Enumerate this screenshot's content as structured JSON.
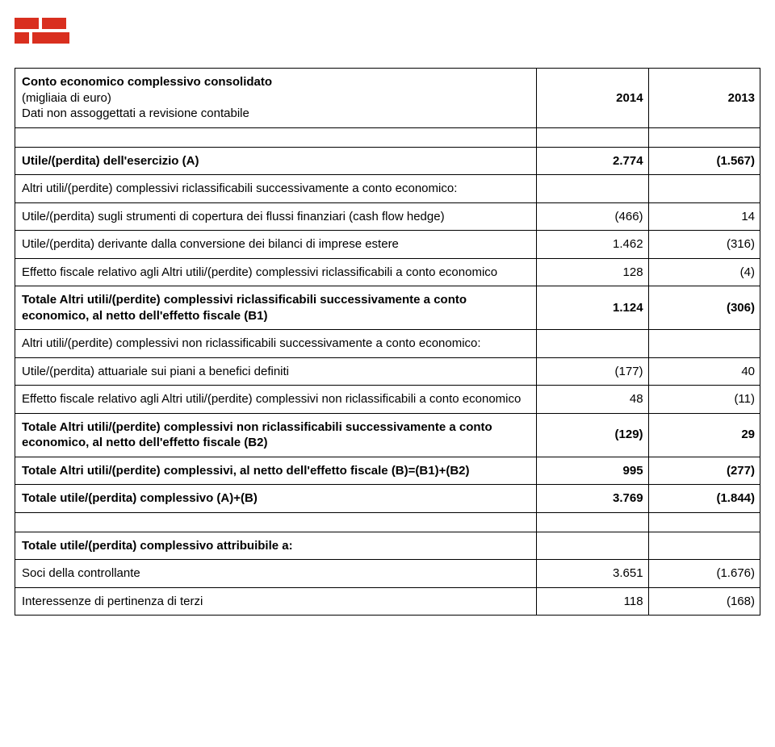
{
  "logo": {
    "brand_color": "#d92f1f"
  },
  "header": {
    "title": "Conto economico complessivo consolidato",
    "sub1": "(migliaia di euro)",
    "sub2": "Dati non assoggettati a revisione contabile",
    "year1": "2014",
    "year2": "2013"
  },
  "rows": {
    "r1": {
      "label": "Utile/(perdita) dell'esercizio  (A)",
      "v1": "2.774",
      "v2": "(1.567)",
      "bold": true
    },
    "r2": {
      "label": "Altri utili/(perdite) complessivi riclassificabili successivamente a conto economico:",
      "v1": "",
      "v2": ""
    },
    "r3": {
      "label": "Utile/(perdita) sugli strumenti di copertura dei flussi finanziari (cash flow hedge)",
      "v1": "(466)",
      "v2": "14"
    },
    "r4": {
      "label": "Utile/(perdita) derivante dalla conversione dei bilanci di imprese estere",
      "v1": "1.462",
      "v2": "(316)"
    },
    "r5": {
      "label": "Effetto fiscale relativo agli Altri utili/(perdite) complessivi riclassificabili a conto economico",
      "v1": "128",
      "v2": "(4)"
    },
    "r6": {
      "label": "Totale Altri utili/(perdite) complessivi riclassificabili successivamente a conto economico, al netto dell'effetto fiscale (B1)",
      "v1": "1.124",
      "v2": "(306)",
      "bold": true
    },
    "r7": {
      "label": "Altri utili/(perdite) complessivi non riclassificabili successivamente a conto economico:",
      "v1": "",
      "v2": ""
    },
    "r8": {
      "label": "Utile/(perdita) attuariale sui piani a benefici definiti",
      "v1": "(177)",
      "v2": "40"
    },
    "r9": {
      "label": "Effetto fiscale relativo agli Altri utili/(perdite) complessivi non riclassificabili a conto economico",
      "v1": "48",
      "v2": "(11)"
    },
    "r10": {
      "label": "Totale Altri utili/(perdite) complessivi non riclassificabili successivamente a conto economico, al netto dell'effetto fiscale (B2)",
      "v1": "(129)",
      "v2": "29",
      "bold": true
    },
    "r11": {
      "label": "Totale Altri utili/(perdite) complessivi, al netto dell'effetto fiscale (B)=(B1)+(B2)",
      "v1": "995",
      "v2": "(277)",
      "bold": true
    },
    "r12": {
      "label": "Totale utile/(perdita) complessivo (A)+(B)",
      "v1": "3.769",
      "v2": "(1.844)",
      "bold": true
    },
    "r13": {
      "label": "Totale utile/(perdita) complessivo attribuibile a:",
      "v1": "",
      "v2": "",
      "bold": true
    },
    "r14": {
      "label": "Soci della controllante",
      "v1": "3.651",
      "v2": "(1.676)"
    },
    "r15": {
      "label": "Interessenze di pertinenza di terzi",
      "v1": "118",
      "v2": "(168)"
    }
  }
}
